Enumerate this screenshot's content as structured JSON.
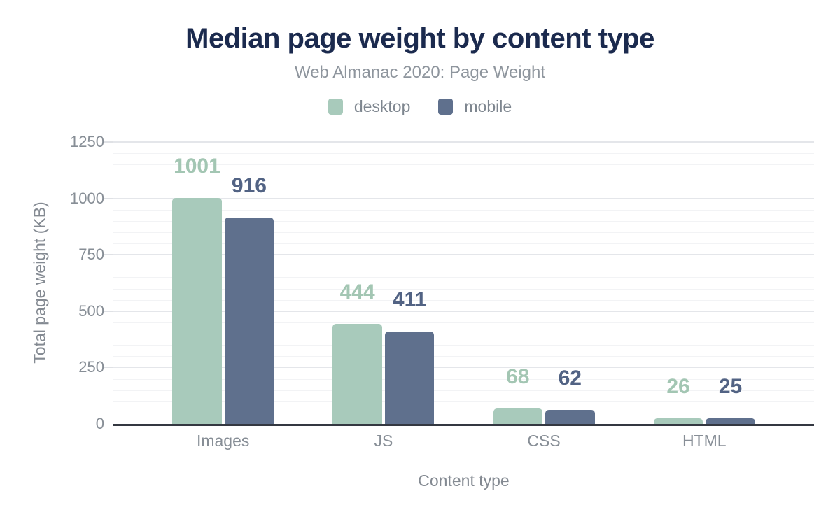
{
  "chart_data": {
    "type": "bar",
    "title": "Median page weight by content type",
    "subtitle": "Web Almanac 2020: Page Weight",
    "categories": [
      "Images",
      "JS",
      "CSS",
      "HTML"
    ],
    "series": [
      {
        "name": "desktop",
        "color": "#a8cabb",
        "label_color": "#a3c6b3",
        "values": [
          1001,
          444,
          68,
          26
        ]
      },
      {
        "name": "mobile",
        "color": "#5f708d",
        "label_color": "#526384",
        "values": [
          916,
          411,
          62,
          25
        ]
      }
    ],
    "xlabel": "Content type",
    "ylabel": "Total page weight (KB)",
    "ylim": [
      0,
      1250
    ],
    "y_major_ticks": [
      0,
      250,
      500,
      750,
      1000,
      1250
    ],
    "y_minor_step": 50,
    "grid": "horizontal",
    "legend_position": "top",
    "bar_labels": true,
    "title_color": "#1b2a4e",
    "axis_line_color": "#343841"
  }
}
